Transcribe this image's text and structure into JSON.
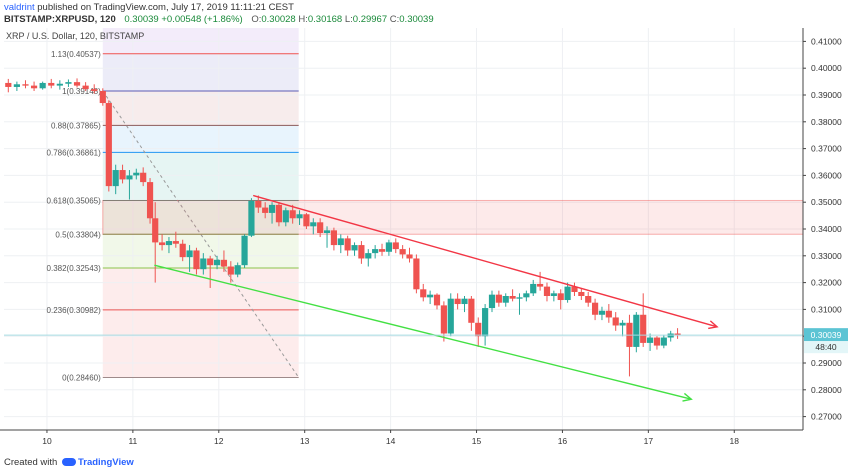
{
  "header": {
    "author": "valdrint",
    "published_text": "published on TradingView.com, July 17, 2019 11:11:21 CEST",
    "symbol": "BITSTAMP:XRPUSD, 120",
    "last": "0.30039",
    "change": "+0.00548 (+1.86%)",
    "open_label": "O:",
    "open": "0.30028",
    "high_label": "H:",
    "high": "0.30168",
    "low_label": "L:",
    "low": "0.29967",
    "close_label": "C:",
    "close": "0.30039"
  },
  "footer": {
    "created_with": "Created with",
    "brand": "TradingView"
  },
  "colors": {
    "up": "#26a69a",
    "down": "#ef5350",
    "red_line": "#f23645",
    "green_line": "#44e044",
    "price_line": "#a6dbe3",
    "price_tag": "#5cc4d4",
    "countdown_tag": "#e3f6f8"
  },
  "chart_data": {
    "type": "candlestick",
    "title": "XRP / U.S. Dollar, 120, BITSTAMP",
    "y_axis": {
      "min": 0.265,
      "max": 0.415,
      "ticks": [
        0.41,
        0.4,
        0.39,
        0.38,
        0.37,
        0.36,
        0.35,
        0.34,
        0.33,
        0.32,
        0.31,
        0.3,
        0.29,
        0.28,
        0.27
      ],
      "tick_labels": [
        "0.41000",
        "0.40000",
        "0.39000",
        "0.38000",
        "0.37000",
        "0.36000",
        "0.35000",
        "0.34000",
        "0.33000",
        "0.32000",
        "0.31000",
        "0.30000",
        "0.29000",
        "0.28000",
        "0.27000"
      ],
      "position": "right"
    },
    "x_axis": {
      "min": 9.5,
      "max": 18.8,
      "ticks": [
        10,
        11,
        12,
        13,
        14,
        15,
        16,
        17,
        18
      ],
      "tick_labels": [
        "10",
        "11",
        "12",
        "13",
        "14",
        "15",
        "16",
        "17",
        "18"
      ]
    },
    "last_price": {
      "value": 0.30039,
      "label": "0.30039",
      "countdown": "48:40"
    },
    "fibonacci": {
      "x_start": 10.65,
      "x_end": 12.93,
      "levels": [
        {
          "ratio": 1.13,
          "price": 0.40537,
          "label": "1.13(0.40537)",
          "color": "#ef5350",
          "fill": "#fde8e9"
        },
        {
          "ratio": 1,
          "price": 0.39148,
          "label": "1(0.39148)",
          "color": "#5b5bb5",
          "fill": "#ececf8"
        },
        {
          "ratio": 0.88,
          "price": 0.37865,
          "label": "0.88(0.37865)",
          "color": "#8a5a5a",
          "fill": "#f7ecec"
        },
        {
          "ratio": 0.786,
          "price": 0.36861,
          "label": "0.786(0.36861)",
          "color": "#2196f3",
          "fill": "#e8f4fd"
        },
        {
          "ratio": 0.618,
          "price": 0.35065,
          "label": "0.618(0.35065)",
          "color": "#26a69a",
          "fill": "#e6f5f3"
        },
        {
          "ratio": 0.5,
          "price": 0.33804,
          "label": "0.5(0.33804)",
          "color": "#4caf50",
          "fill": "#ecf7ec"
        },
        {
          "ratio": 0.382,
          "price": 0.32543,
          "label": "0.382(0.32543)",
          "color": "#8bc34a",
          "fill": "#f1f8e9"
        },
        {
          "ratio": 0.236,
          "price": 0.30982,
          "label": "0.236(0.30982)",
          "color": "#ef5350",
          "fill": "#fdecec"
        },
        {
          "ratio": 0,
          "price": 0.2846,
          "label": "0(0.28460)",
          "color": "#9e8a8a",
          "fill": "#fdecec"
        }
      ],
      "trendline": {
        "x1": 10.65,
        "y1": 0.39148,
        "x2": 12.93,
        "y2": 0.2846
      }
    },
    "resistance_zone": {
      "x_start": 10.65,
      "x_end": 18.8,
      "top": 0.35065,
      "bottom": 0.33804
    },
    "channel_upper": {
      "x1": 12.4,
      "y1": 0.3525,
      "x2": 17.8,
      "y2": 0.3035
    },
    "channel_lower": {
      "x1": 11.25,
      "y1": 0.3265,
      "x2": 17.5,
      "y2": 0.2765
    },
    "candles": [
      {
        "t": 9.55,
        "o": 0.3945,
        "h": 0.396,
        "l": 0.391,
        "c": 0.393
      },
      {
        "t": 9.65,
        "o": 0.393,
        "h": 0.395,
        "l": 0.3915,
        "c": 0.394
      },
      {
        "t": 9.75,
        "o": 0.394,
        "h": 0.3955,
        "l": 0.3925,
        "c": 0.3935
      },
      {
        "t": 9.85,
        "o": 0.3935,
        "h": 0.395,
        "l": 0.3915,
        "c": 0.3925
      },
      {
        "t": 9.95,
        "o": 0.3925,
        "h": 0.395,
        "l": 0.392,
        "c": 0.3945
      },
      {
        "t": 10.05,
        "o": 0.3945,
        "h": 0.396,
        "l": 0.3925,
        "c": 0.3935
      },
      {
        "t": 10.15,
        "o": 0.3935,
        "h": 0.3955,
        "l": 0.392,
        "c": 0.3942
      },
      {
        "t": 10.25,
        "o": 0.3942,
        "h": 0.3958,
        "l": 0.393,
        "c": 0.3948
      },
      {
        "t": 10.35,
        "o": 0.3948,
        "h": 0.3962,
        "l": 0.3928,
        "c": 0.3935
      },
      {
        "t": 10.45,
        "o": 0.3935,
        "h": 0.3948,
        "l": 0.3915,
        "c": 0.3922
      },
      {
        "t": 10.55,
        "o": 0.3922,
        "h": 0.394,
        "l": 0.3905,
        "c": 0.3915
      },
      {
        "t": 10.65,
        "o": 0.3915,
        "h": 0.3925,
        "l": 0.386,
        "c": 0.387
      },
      {
        "t": 10.72,
        "o": 0.387,
        "h": 0.388,
        "l": 0.354,
        "c": 0.356
      },
      {
        "t": 10.8,
        "o": 0.356,
        "h": 0.364,
        "l": 0.353,
        "c": 0.362
      },
      {
        "t": 10.88,
        "o": 0.362,
        "h": 0.364,
        "l": 0.357,
        "c": 0.3585
      },
      {
        "t": 10.96,
        "o": 0.3585,
        "h": 0.362,
        "l": 0.351,
        "c": 0.36
      },
      {
        "t": 11.04,
        "o": 0.36,
        "h": 0.3625,
        "l": 0.3585,
        "c": 0.361
      },
      {
        "t": 11.12,
        "o": 0.361,
        "h": 0.363,
        "l": 0.356,
        "c": 0.3575
      },
      {
        "t": 11.2,
        "o": 0.3575,
        "h": 0.359,
        "l": 0.342,
        "c": 0.344
      },
      {
        "t": 11.26,
        "o": 0.344,
        "h": 0.35,
        "l": 0.32,
        "c": 0.335
      },
      {
        "t": 11.34,
        "o": 0.335,
        "h": 0.338,
        "l": 0.332,
        "c": 0.334
      },
      {
        "t": 11.42,
        "o": 0.334,
        "h": 0.337,
        "l": 0.331,
        "c": 0.3355
      },
      {
        "t": 11.5,
        "o": 0.3355,
        "h": 0.339,
        "l": 0.333,
        "c": 0.3345
      },
      {
        "t": 11.58,
        "o": 0.3345,
        "h": 0.336,
        "l": 0.328,
        "c": 0.3295
      },
      {
        "t": 11.66,
        "o": 0.3295,
        "h": 0.334,
        "l": 0.324,
        "c": 0.332
      },
      {
        "t": 11.74,
        "o": 0.332,
        "h": 0.333,
        "l": 0.323,
        "c": 0.325
      },
      {
        "t": 11.82,
        "o": 0.325,
        "h": 0.331,
        "l": 0.323,
        "c": 0.329
      },
      {
        "t": 11.9,
        "o": 0.329,
        "h": 0.33,
        "l": 0.318,
        "c": 0.3265
      },
      {
        "t": 11.98,
        "o": 0.3265,
        "h": 0.33,
        "l": 0.325,
        "c": 0.3285
      },
      {
        "t": 12.06,
        "o": 0.3285,
        "h": 0.332,
        "l": 0.324,
        "c": 0.326
      },
      {
        "t": 12.14,
        "o": 0.326,
        "h": 0.328,
        "l": 0.32,
        "c": 0.323
      },
      {
        "t": 12.22,
        "o": 0.323,
        "h": 0.3275,
        "l": 0.322,
        "c": 0.3265
      },
      {
        "t": 12.3,
        "o": 0.3265,
        "h": 0.338,
        "l": 0.3255,
        "c": 0.3375
      },
      {
        "t": 12.38,
        "o": 0.3375,
        "h": 0.3515,
        "l": 0.337,
        "c": 0.3505
      },
      {
        "t": 12.46,
        "o": 0.3505,
        "h": 0.3525,
        "l": 0.346,
        "c": 0.348
      },
      {
        "t": 12.54,
        "o": 0.348,
        "h": 0.35,
        "l": 0.344,
        "c": 0.346
      },
      {
        "t": 12.62,
        "o": 0.346,
        "h": 0.35,
        "l": 0.342,
        "c": 0.349
      },
      {
        "t": 12.7,
        "o": 0.349,
        "h": 0.35,
        "l": 0.341,
        "c": 0.3425
      },
      {
        "t": 12.78,
        "o": 0.3425,
        "h": 0.348,
        "l": 0.341,
        "c": 0.347
      },
      {
        "t": 12.86,
        "o": 0.347,
        "h": 0.349,
        "l": 0.342,
        "c": 0.344
      },
      {
        "t": 12.94,
        "o": 0.344,
        "h": 0.347,
        "l": 0.3415,
        "c": 0.3455
      },
      {
        "t": 13.02,
        "o": 0.3455,
        "h": 0.346,
        "l": 0.34,
        "c": 0.341
      },
      {
        "t": 13.1,
        "o": 0.341,
        "h": 0.344,
        "l": 0.338,
        "c": 0.3425
      },
      {
        "t": 13.18,
        "o": 0.3425,
        "h": 0.344,
        "l": 0.337,
        "c": 0.3385
      },
      {
        "t": 13.26,
        "o": 0.3385,
        "h": 0.341,
        "l": 0.333,
        "c": 0.3395
      },
      {
        "t": 13.34,
        "o": 0.3395,
        "h": 0.3405,
        "l": 0.332,
        "c": 0.334
      },
      {
        "t": 13.42,
        "o": 0.334,
        "h": 0.338,
        "l": 0.331,
        "c": 0.3365
      },
      {
        "t": 13.5,
        "o": 0.3365,
        "h": 0.3375,
        "l": 0.33,
        "c": 0.332
      },
      {
        "t": 13.58,
        "o": 0.332,
        "h": 0.335,
        "l": 0.33,
        "c": 0.334
      },
      {
        "t": 13.66,
        "o": 0.334,
        "h": 0.3355,
        "l": 0.327,
        "c": 0.329
      },
      {
        "t": 13.74,
        "o": 0.329,
        "h": 0.3325,
        "l": 0.326,
        "c": 0.331
      },
      {
        "t": 13.82,
        "o": 0.331,
        "h": 0.334,
        "l": 0.329,
        "c": 0.3325
      },
      {
        "t": 13.9,
        "o": 0.3325,
        "h": 0.3345,
        "l": 0.33,
        "c": 0.3315
      },
      {
        "t": 13.98,
        "o": 0.3315,
        "h": 0.336,
        "l": 0.33,
        "c": 0.335
      },
      {
        "t": 14.06,
        "o": 0.335,
        "h": 0.3365,
        "l": 0.331,
        "c": 0.3325
      },
      {
        "t": 14.14,
        "o": 0.3325,
        "h": 0.334,
        "l": 0.329,
        "c": 0.3305
      },
      {
        "t": 14.22,
        "o": 0.3305,
        "h": 0.333,
        "l": 0.3275,
        "c": 0.329
      },
      {
        "t": 14.3,
        "o": 0.329,
        "h": 0.3305,
        "l": 0.316,
        "c": 0.3175
      },
      {
        "t": 14.38,
        "o": 0.3175,
        "h": 0.3195,
        "l": 0.313,
        "c": 0.3145
      },
      {
        "t": 14.46,
        "o": 0.3145,
        "h": 0.317,
        "l": 0.312,
        "c": 0.3155
      },
      {
        "t": 14.54,
        "o": 0.3155,
        "h": 0.316,
        "l": 0.31,
        "c": 0.3115
      },
      {
        "t": 14.62,
        "o": 0.3115,
        "h": 0.313,
        "l": 0.298,
        "c": 0.301
      },
      {
        "t": 14.7,
        "o": 0.301,
        "h": 0.316,
        "l": 0.3,
        "c": 0.314
      },
      {
        "t": 14.78,
        "o": 0.314,
        "h": 0.316,
        "l": 0.31,
        "c": 0.312
      },
      {
        "t": 14.86,
        "o": 0.312,
        "h": 0.315,
        "l": 0.309,
        "c": 0.314
      },
      {
        "t": 14.94,
        "o": 0.314,
        "h": 0.315,
        "l": 0.302,
        "c": 0.305
      },
      {
        "t": 15.02,
        "o": 0.305,
        "h": 0.307,
        "l": 0.296,
        "c": 0.3
      },
      {
        "t": 15.1,
        "o": 0.3,
        "h": 0.312,
        "l": 0.2965,
        "c": 0.3105
      },
      {
        "t": 15.18,
        "o": 0.3105,
        "h": 0.317,
        "l": 0.309,
        "c": 0.3155
      },
      {
        "t": 15.26,
        "o": 0.3155,
        "h": 0.317,
        "l": 0.311,
        "c": 0.3125
      },
      {
        "t": 15.34,
        "o": 0.3125,
        "h": 0.316,
        "l": 0.311,
        "c": 0.315
      },
      {
        "t": 15.42,
        "o": 0.315,
        "h": 0.3175,
        "l": 0.313,
        "c": 0.314
      },
      {
        "t": 15.5,
        "o": 0.314,
        "h": 0.316,
        "l": 0.308,
        "c": 0.3145
      },
      {
        "t": 15.58,
        "o": 0.3145,
        "h": 0.317,
        "l": 0.313,
        "c": 0.316
      },
      {
        "t": 15.66,
        "o": 0.316,
        "h": 0.321,
        "l": 0.315,
        "c": 0.3195
      },
      {
        "t": 15.74,
        "o": 0.3195,
        "h": 0.324,
        "l": 0.317,
        "c": 0.3185
      },
      {
        "t": 15.82,
        "o": 0.3185,
        "h": 0.32,
        "l": 0.313,
        "c": 0.315
      },
      {
        "t": 15.9,
        "o": 0.315,
        "h": 0.317,
        "l": 0.313,
        "c": 0.316
      },
      {
        "t": 15.98,
        "o": 0.316,
        "h": 0.3175,
        "l": 0.31,
        "c": 0.3135
      },
      {
        "t": 16.06,
        "o": 0.3135,
        "h": 0.32,
        "l": 0.3125,
        "c": 0.3185
      },
      {
        "t": 16.14,
        "o": 0.3185,
        "h": 0.32,
        "l": 0.315,
        "c": 0.3165
      },
      {
        "t": 16.22,
        "o": 0.3165,
        "h": 0.318,
        "l": 0.3135,
        "c": 0.315
      },
      {
        "t": 16.3,
        "o": 0.315,
        "h": 0.3165,
        "l": 0.311,
        "c": 0.3125
      },
      {
        "t": 16.38,
        "o": 0.3125,
        "h": 0.314,
        "l": 0.306,
        "c": 0.308
      },
      {
        "t": 16.46,
        "o": 0.308,
        "h": 0.311,
        "l": 0.306,
        "c": 0.3095
      },
      {
        "t": 16.54,
        "o": 0.3095,
        "h": 0.312,
        "l": 0.305,
        "c": 0.307
      },
      {
        "t": 16.62,
        "o": 0.307,
        "h": 0.309,
        "l": 0.302,
        "c": 0.304
      },
      {
        "t": 16.7,
        "o": 0.304,
        "h": 0.306,
        "l": 0.3,
        "c": 0.305
      },
      {
        "t": 16.78,
        "o": 0.305,
        "h": 0.308,
        "l": 0.285,
        "c": 0.296
      },
      {
        "t": 16.86,
        "o": 0.296,
        "h": 0.309,
        "l": 0.294,
        "c": 0.308
      },
      {
        "t": 16.94,
        "o": 0.308,
        "h": 0.316,
        "l": 0.296,
        "c": 0.2975
      },
      {
        "t": 17.02,
        "o": 0.2975,
        "h": 0.301,
        "l": 0.2945,
        "c": 0.2995
      },
      {
        "t": 17.1,
        "o": 0.2995,
        "h": 0.3,
        "l": 0.295,
        "c": 0.2965
      },
      {
        "t": 17.18,
        "o": 0.2965,
        "h": 0.3005,
        "l": 0.2955,
        "c": 0.2995
      },
      {
        "t": 17.26,
        "o": 0.2995,
        "h": 0.302,
        "l": 0.298,
        "c": 0.301
      },
      {
        "t": 17.34,
        "o": 0.301,
        "h": 0.303,
        "l": 0.299,
        "c": 0.3004
      }
    ]
  }
}
